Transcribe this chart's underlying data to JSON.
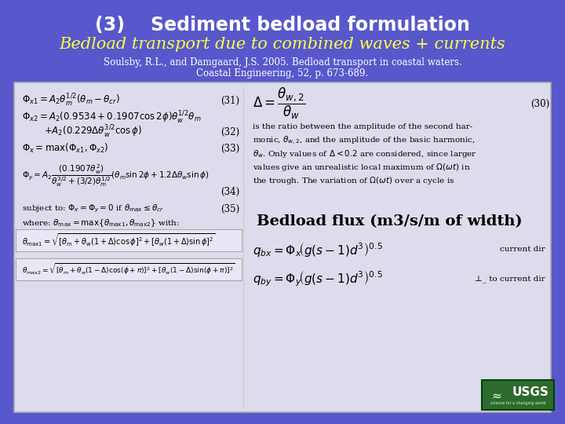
{
  "bg_color": "#5858cc",
  "title_text": "(3)    Sediment bedload formulation",
  "subtitle_text": "Bedload transport due to combined waves + currents",
  "ref_line1": "Soulsby, R.L., and Damgaard, J.S. 2005. Bedload transport in coastal waters.",
  "ref_line2": "Coastal Engineering, 52, p. 673-689.",
  "title_color": "#ffffff",
  "subtitle_color": "#ffff44",
  "ref_color": "#ffffff",
  "content_bg": "#dcdcec",
  "bedload_flux_title": "Bedload flux (m3/s/m of width)",
  "flux_label1": "current dir",
  "flux_label2": "⊥_ to current dir"
}
